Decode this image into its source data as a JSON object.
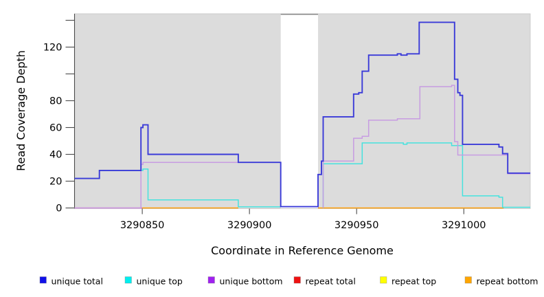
{
  "chart_data": {
    "type": "line",
    "title": "",
    "xlabel": "Coordinate in Reference Genome",
    "ylabel": "Read Coverage Depth",
    "xlim": [
      3290818.4,
      3291031.0
    ],
    "ylim": [
      0,
      145
    ],
    "grid": false,
    "x_ticks": [
      {
        "value": 3290850,
        "label": "3290850"
      },
      {
        "value": 3290900,
        "label": "3290900"
      },
      {
        "value": 3290950,
        "label": "3290950"
      },
      {
        "value": 3291000,
        "label": "3291000"
      }
    ],
    "y_ticks": [
      {
        "value": 0,
        "label": "0"
      },
      {
        "value": 20,
        "label": "20"
      },
      {
        "value": 40,
        "label": "40"
      },
      {
        "value": 60,
        "label": "60"
      },
      {
        "value": 80,
        "label": "80"
      },
      {
        "value": 100,
        "label": ""
      },
      {
        "value": 120,
        "label": "120"
      },
      {
        "value": 140,
        "label": ""
      }
    ],
    "masked_x_range": [
      3290914.6,
      3290932.0
    ],
    "colors": {
      "panel": "#dcdcdc",
      "panel_border": "#c6c6c6",
      "mask": "#ffffff",
      "mask_cap": "#8f8f8f",
      "axis": "#4a4a4a",
      "text": "#000000"
    },
    "series": [
      {
        "name": "repeat total",
        "line_color": "#e566ad",
        "paths": [
          [
            [
              3290818.4,
              0
            ],
            [
              3290850,
              0
            ]
          ]
        ]
      },
      {
        "name": "repeat top",
        "line_color": "#ffff00",
        "paths": []
      },
      {
        "name": "repeat bottom",
        "line_color": "#ff9d05",
        "paths": [
          [
            [
              3290850,
              0
            ],
            [
              3290894.8,
              0
            ]
          ],
          [
            [
              3290932,
              0
            ],
            [
              3291018.6,
              0
            ]
          ]
        ]
      },
      {
        "name": "unique top",
        "line_color": "#46e2de",
        "paths": [
          [
            [
              3290818.4,
              22
            ],
            [
              3290830,
              22
            ],
            [
              3290830,
              28
            ],
            [
              3290850.3,
              28
            ],
            [
              3290850.3,
              29
            ],
            [
              3290852.7,
              29
            ],
            [
              3290852.7,
              6
            ],
            [
              3290894.8,
              6
            ],
            [
              3290894.8,
              0.8
            ],
            [
              3290914.6,
              0.8
            ]
          ],
          [
            [
              3290934.4,
              0
            ],
            [
              3290934.4,
              33
            ],
            [
              3290952.6,
              33
            ],
            [
              3290952.6,
              48.5
            ],
            [
              3290971.8,
              48.5
            ],
            [
              3290971.8,
              47.5
            ],
            [
              3290973.5,
              47.5
            ],
            [
              3290973.5,
              48.5
            ],
            [
              3290994.3,
              48.5
            ],
            [
              3290994.3,
              46.5
            ],
            [
              3290999.4,
              46.5
            ],
            [
              3290999.4,
              9
            ],
            [
              3291016.4,
              9
            ],
            [
              3291016.4,
              8
            ],
            [
              3291018.1,
              8
            ],
            [
              3291018.1,
              0.5
            ],
            [
              3291031,
              0.5
            ]
          ]
        ]
      },
      {
        "name": "unique bottom",
        "line_color": "#c79ce2",
        "paths": [
          [
            [
              3290818.4,
              0
            ],
            [
              3290849.4,
              0
            ],
            [
              3290849.4,
              32.5
            ],
            [
              3290850.3,
              32.5
            ],
            [
              3290850.3,
              34
            ],
            [
              3290914.6,
              34
            ],
            [
              3290914.6,
              1
            ]
          ],
          [
            [
              3290934.4,
              0
            ],
            [
              3290934.4,
              35
            ],
            [
              3290948.6,
              35
            ],
            [
              3290948.6,
              52
            ],
            [
              3290952.6,
              52
            ],
            [
              3290952.6,
              53.5
            ],
            [
              3290955.6,
              53.5
            ],
            [
              3290955.6,
              65.5
            ],
            [
              3290969,
              65.5
            ],
            [
              3290969,
              66.5
            ],
            [
              3290979.5,
              66.5
            ],
            [
              3290979.5,
              90.5
            ],
            [
              3290994.3,
              90.5
            ],
            [
              3290994.3,
              91.5
            ],
            [
              3290995.7,
              91.5
            ],
            [
              3290995.7,
              49.5
            ],
            [
              3290997.2,
              49.5
            ],
            [
              3290997.2,
              39.5
            ],
            [
              3291020.5,
              39.5
            ],
            [
              3291020.5,
              25.5
            ],
            [
              3291031,
              25.5
            ]
          ]
        ]
      },
      {
        "name": "unique total",
        "line_color": "#3a3ad8",
        "paths": [
          [
            [
              3290818.4,
              22
            ],
            [
              3290830,
              22
            ],
            [
              3290830,
              28
            ],
            [
              3290849.4,
              28
            ],
            [
              3290849.4,
              60
            ],
            [
              3290850.3,
              60
            ],
            [
              3290850.3,
              62
            ],
            [
              3290852.7,
              62
            ],
            [
              3290852.7,
              40
            ],
            [
              3290894.8,
              40
            ],
            [
              3290894.8,
              34
            ],
            [
              3290914.6,
              34
            ],
            [
              3290914.6,
              1
            ],
            [
              3290932,
              1
            ],
            [
              3290932,
              25
            ],
            [
              3290933.6,
              25
            ],
            [
              3290933.6,
              35
            ],
            [
              3290934.4,
              35
            ],
            [
              3290934.4,
              68
            ],
            [
              3290948.6,
              68
            ],
            [
              3290948.6,
              85
            ],
            [
              3290951,
              85
            ],
            [
              3290951,
              86
            ],
            [
              3290952.6,
              86
            ],
            [
              3290952.6,
              102
            ],
            [
              3290955.6,
              102
            ],
            [
              3290955.6,
              114
            ],
            [
              3290969,
              114
            ],
            [
              3290969,
              115
            ],
            [
              3290970.7,
              115
            ],
            [
              3290970.7,
              114
            ],
            [
              3290973.5,
              114
            ],
            [
              3290973.5,
              115
            ],
            [
              3290979.2,
              115
            ],
            [
              3290979.2,
              138.5
            ],
            [
              3290995.7,
              138.5
            ],
            [
              3290995.7,
              96
            ],
            [
              3290997.2,
              96
            ],
            [
              3290997.2,
              86
            ],
            [
              3290998.2,
              86
            ],
            [
              3290998.2,
              84
            ],
            [
              3290999.4,
              84
            ],
            [
              3290999.4,
              47.5
            ],
            [
              3291016.4,
              47.5
            ],
            [
              3291016.4,
              45.5
            ],
            [
              3291018.1,
              45.5
            ],
            [
              3291018.1,
              40.5
            ],
            [
              3291020.5,
              40.5
            ],
            [
              3291020.5,
              26
            ],
            [
              3291031,
              26
            ]
          ]
        ]
      }
    ],
    "legend": {
      "items": [
        {
          "label": "unique total",
          "swatch_color": "#1010e8"
        },
        {
          "label": "unique top",
          "swatch_color": "#00eeee"
        },
        {
          "label": "unique bottom",
          "swatch_color": "#a020f0"
        },
        {
          "label": "repeat total",
          "swatch_color": "#ee1111"
        },
        {
          "label": "repeat top",
          "swatch_color": "#ffff00"
        },
        {
          "label": "repeat bottom",
          "swatch_color": "#ffa500"
        }
      ]
    }
  }
}
